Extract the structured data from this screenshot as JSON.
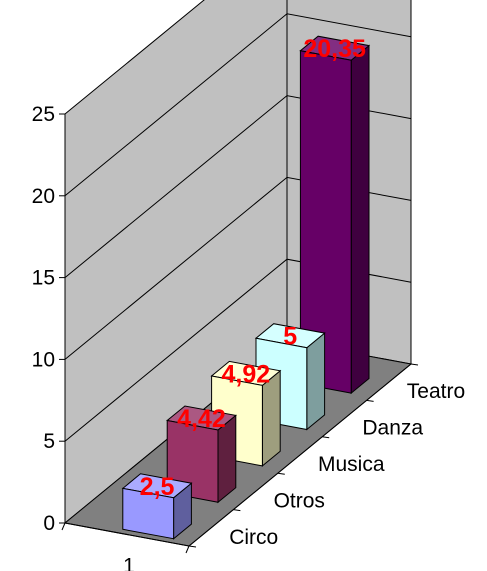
{
  "chart_data": {
    "type": "bar",
    "style": "3d-column",
    "categories": [
      "1"
    ],
    "series": [
      {
        "name": "Circo",
        "values": [
          2.5
        ],
        "label": "2,5",
        "color": "#9999ff"
      },
      {
        "name": "Otros",
        "values": [
          4.42
        ],
        "label": "4,42",
        "color": "#993366"
      },
      {
        "name": "Musica",
        "values": [
          4.92
        ],
        "label": "4,92",
        "color": "#ffffcc"
      },
      {
        "name": "Danza",
        "values": [
          5
        ],
        "label": "5",
        "color": "#ccffff"
      },
      {
        "name": "Teatro",
        "values": [
          20.35
        ],
        "label": "20,35",
        "color": "#660066"
      }
    ],
    "ylim": [
      0,
      25
    ],
    "yticks": [
      "0",
      "5",
      "10",
      "15",
      "20",
      "25"
    ],
    "ytick_values": [
      0,
      5,
      10,
      15,
      20,
      25
    ],
    "grid": true,
    "legend": "none",
    "wall_color": "#c0c0c0",
    "floor_color": "#808080",
    "label_color": "#ff0000",
    "title": "",
    "xlabel": "",
    "ylabel": ""
  }
}
